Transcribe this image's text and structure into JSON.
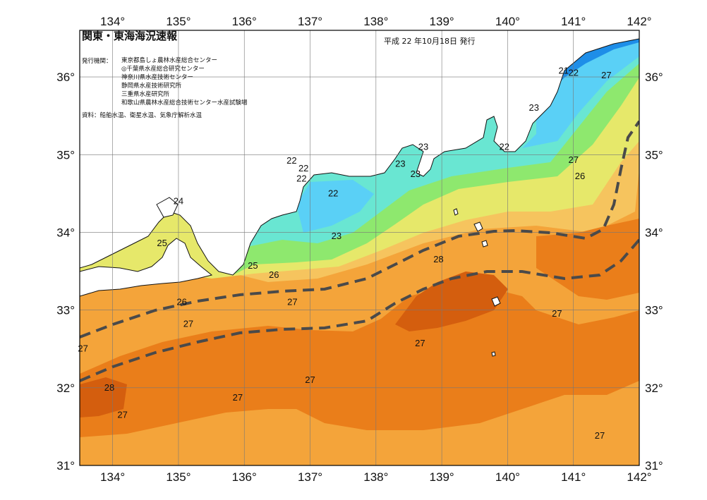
{
  "header": {
    "title": "関東・東海海況速報",
    "date": "平成 22 年10月18日 発行",
    "agency_label": "発行機関：",
    "agencies": [
      "東京都島しょ農林水産総合センター",
      "◎千葉県水産総合研究センター",
      "神奈川県水産技術センター",
      "静岡県水産技術研究所",
      "三重県水産研究所",
      "和歌山県農林水産総合技術センター水産試験場"
    ],
    "source": "資料：船舶水温、衛星水温、気象庁解析水温"
  },
  "axes": {
    "lon_labels": [
      "134°",
      "135°",
      "136°",
      "137°",
      "138°",
      "139°",
      "140°",
      "141°",
      "142°"
    ],
    "lat_labels": [
      "36°",
      "35°",
      "34°",
      "33°",
      "32°",
      "31°"
    ]
  },
  "contour_labels": [
    {
      "text": "21",
      "lon": 140.85,
      "lat": 36.08
    },
    {
      "text": "22",
      "lon": 141.0,
      "lat": 36.05
    },
    {
      "text": "27",
      "lon": 141.5,
      "lat": 36.02
    },
    {
      "text": "23",
      "lon": 140.4,
      "lat": 35.6
    },
    {
      "text": "22",
      "lon": 139.95,
      "lat": 35.1
    },
    {
      "text": "23",
      "lon": 138.72,
      "lat": 35.1
    },
    {
      "text": "23",
      "lon": 138.37,
      "lat": 34.88
    },
    {
      "text": "23",
      "lon": 138.6,
      "lat": 34.75
    },
    {
      "text": "27",
      "lon": 141.0,
      "lat": 34.93
    },
    {
      "text": "26",
      "lon": 141.1,
      "lat": 34.72
    },
    {
      "text": "22",
      "lon": 136.72,
      "lat": 34.92
    },
    {
      "text": "22",
      "lon": 136.9,
      "lat": 34.82
    },
    {
      "text": "22",
      "lon": 136.87,
      "lat": 34.69
    },
    {
      "text": "22",
      "lon": 137.35,
      "lat": 34.5
    },
    {
      "text": "24",
      "lon": 135.0,
      "lat": 34.4
    },
    {
      "text": "25",
      "lon": 134.75,
      "lat": 33.86
    },
    {
      "text": "23",
      "lon": 137.4,
      "lat": 33.95
    },
    {
      "text": "28",
      "lon": 138.95,
      "lat": 33.65
    },
    {
      "text": "25",
      "lon": 136.13,
      "lat": 33.57
    },
    {
      "text": "26",
      "lon": 136.45,
      "lat": 33.45
    },
    {
      "text": "26",
      "lon": 135.05,
      "lat": 33.1
    },
    {
      "text": "27",
      "lon": 136.73,
      "lat": 33.1
    },
    {
      "text": "27",
      "lon": 140.75,
      "lat": 32.95
    },
    {
      "text": "27",
      "lon": 135.15,
      "lat": 32.82
    },
    {
      "text": "27",
      "lon": 138.67,
      "lat": 32.57
    },
    {
      "text": "27",
      "lon": 133.55,
      "lat": 32.5
    },
    {
      "text": "27",
      "lon": 137.0,
      "lat": 32.1
    },
    {
      "text": "28",
      "lon": 133.95,
      "lat": 32.0
    },
    {
      "text": "27",
      "lon": 135.9,
      "lat": 31.87
    },
    {
      "text": "27",
      "lon": 134.15,
      "lat": 31.65
    },
    {
      "text": "27",
      "lon": 141.4,
      "lat": 31.38
    }
  ],
  "colors": {
    "t21": "#1e8ee8",
    "t22": "#5ad0f6",
    "t23": "#69e6d2",
    "t24": "#8ee86e",
    "t25": "#e6e86a",
    "t26": "#f6c45e",
    "t27": "#f4a43a",
    "t28": "#ea7e1a",
    "t29": "#d45e0e",
    "land": "#ffffff",
    "kuroshio": "#4a4a4a"
  }
}
